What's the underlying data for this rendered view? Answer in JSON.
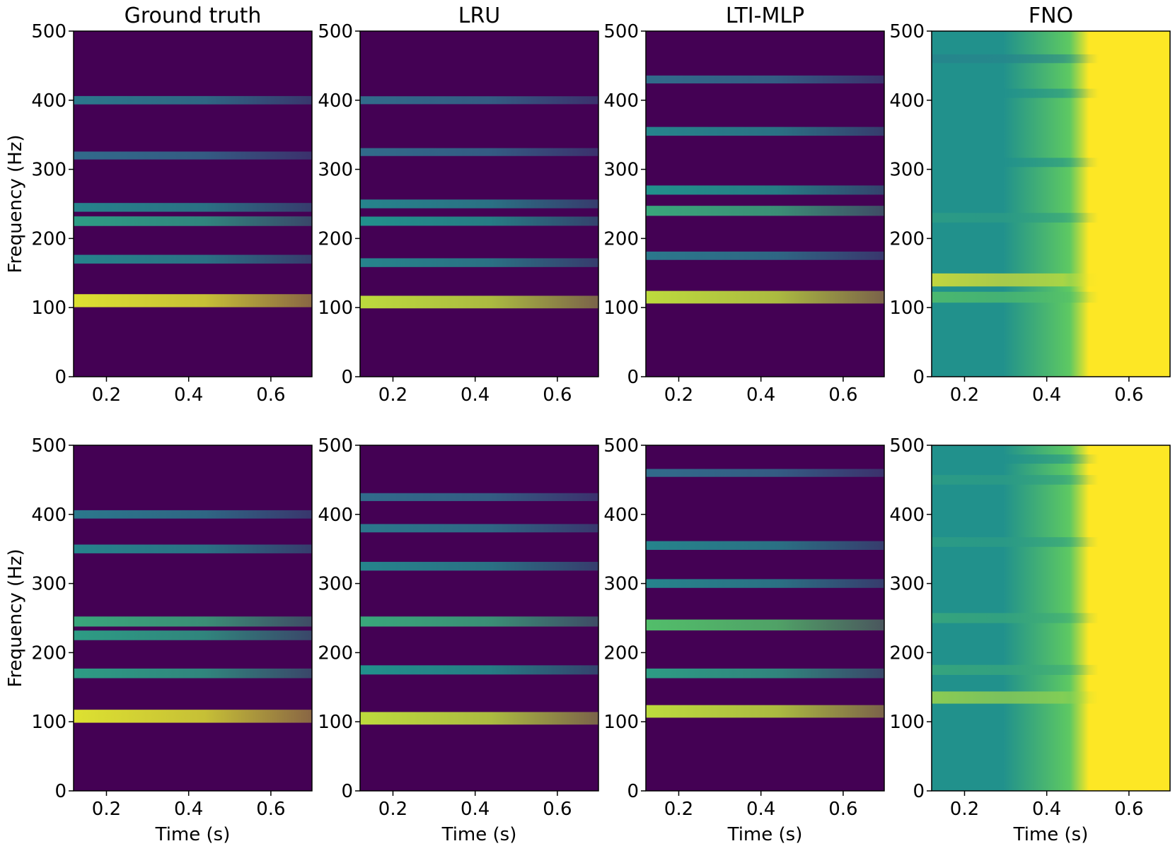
{
  "figure": {
    "colors": {
      "low": "#440154",
      "mid": "#21918c",
      "bright": "#5ec962",
      "high": "#fde725"
    }
  },
  "chart_data": [
    {
      "type": "heatmap",
      "title": "Ground truth",
      "xlabel": "",
      "ylabel": "Frequency (Hz)",
      "xlim": [
        0.12,
        0.7
      ],
      "ylim": [
        0,
        500
      ],
      "xticks": [
        "0.2",
        "0.4",
        "0.6"
      ],
      "yticks": [
        "0",
        "100",
        "200",
        "300",
        "400",
        "500"
      ],
      "colormap": "viridis",
      "bands": [
        {
          "freq": 110,
          "intensity": 0.95
        },
        {
          "freq": 170,
          "intensity": 0.45
        },
        {
          "freq": 225,
          "intensity": 0.55
        },
        {
          "freq": 245,
          "intensity": 0.45
        },
        {
          "freq": 320,
          "intensity": 0.35
        },
        {
          "freq": 400,
          "intensity": 0.4
        }
      ]
    },
    {
      "type": "heatmap",
      "title": "LRU",
      "xlabel": "",
      "ylabel": "",
      "xlim": [
        0.12,
        0.7
      ],
      "ylim": [
        0,
        500
      ],
      "xticks": [
        "0.2",
        "0.4",
        "0.6"
      ],
      "yticks": [
        "0",
        "100",
        "200",
        "300",
        "400",
        "500"
      ],
      "colormap": "viridis",
      "bands": [
        {
          "freq": 108,
          "intensity": 0.9
        },
        {
          "freq": 165,
          "intensity": 0.45
        },
        {
          "freq": 225,
          "intensity": 0.5
        },
        {
          "freq": 250,
          "intensity": 0.45
        },
        {
          "freq": 325,
          "intensity": 0.35
        },
        {
          "freq": 400,
          "intensity": 0.35
        }
      ]
    },
    {
      "type": "heatmap",
      "title": "LTI-MLP",
      "xlabel": "",
      "ylabel": "",
      "xlim": [
        0.12,
        0.7
      ],
      "ylim": [
        0,
        500
      ],
      "xticks": [
        "0.2",
        "0.4",
        "0.6"
      ],
      "yticks": [
        "0",
        "100",
        "200",
        "300",
        "400",
        "500"
      ],
      "colormap": "viridis",
      "bands": [
        {
          "freq": 115,
          "intensity": 0.9
        },
        {
          "freq": 175,
          "intensity": 0.4
        },
        {
          "freq": 240,
          "intensity": 0.6
        },
        {
          "freq": 270,
          "intensity": 0.5
        },
        {
          "freq": 355,
          "intensity": 0.45
        },
        {
          "freq": 430,
          "intensity": 0.35
        }
      ]
    },
    {
      "type": "heatmap",
      "title": "FNO",
      "xlabel": "",
      "ylabel": "",
      "xlim": [
        0.12,
        0.7
      ],
      "ylim": [
        0,
        500
      ],
      "xticks": [
        "0.2",
        "0.4",
        "0.6"
      ],
      "yticks": [
        "0",
        "100",
        "200",
        "300",
        "400",
        "500"
      ],
      "colormap": "viridis",
      "bands": [
        {
          "freq": 140,
          "intensity": 0.95
        },
        {
          "freq": 115,
          "intensity": 0.7
        },
        {
          "freq": 230,
          "intensity": 0.55
        },
        {
          "freq": 310,
          "intensity": 0.5
        },
        {
          "freq": 410,
          "intensity": 0.5
        },
        {
          "freq": 460,
          "intensity": 0.45
        }
      ]
    },
    {
      "type": "heatmap",
      "title": "",
      "xlabel": "Time (s)",
      "ylabel": "Frequency (Hz)",
      "xlim": [
        0.12,
        0.7
      ],
      "ylim": [
        0,
        500
      ],
      "xticks": [
        "0.2",
        "0.4",
        "0.6"
      ],
      "yticks": [
        "0",
        "100",
        "200",
        "300",
        "400",
        "500"
      ],
      "colormap": "viridis",
      "bands": [
        {
          "freq": 108,
          "intensity": 0.95
        },
        {
          "freq": 170,
          "intensity": 0.55
        },
        {
          "freq": 225,
          "intensity": 0.55
        },
        {
          "freq": 245,
          "intensity": 0.6
        },
        {
          "freq": 350,
          "intensity": 0.45
        },
        {
          "freq": 400,
          "intensity": 0.4
        }
      ]
    },
    {
      "type": "heatmap",
      "title": "",
      "xlabel": "Time (s)",
      "ylabel": "",
      "xlim": [
        0.12,
        0.7
      ],
      "ylim": [
        0,
        500
      ],
      "xticks": [
        "0.2",
        "0.4",
        "0.6"
      ],
      "yticks": [
        "0",
        "100",
        "200",
        "300",
        "400",
        "500"
      ],
      "colormap": "viridis",
      "bands": [
        {
          "freq": 105,
          "intensity": 0.9
        },
        {
          "freq": 175,
          "intensity": 0.5
        },
        {
          "freq": 245,
          "intensity": 0.6
        },
        {
          "freq": 325,
          "intensity": 0.45
        },
        {
          "freq": 380,
          "intensity": 0.4
        },
        {
          "freq": 425,
          "intensity": 0.35
        }
      ]
    },
    {
      "type": "heatmap",
      "title": "",
      "xlabel": "Time (s)",
      "ylabel": "",
      "xlim": [
        0.12,
        0.7
      ],
      "ylim": [
        0,
        500
      ],
      "xticks": [
        "0.2",
        "0.4",
        "0.6"
      ],
      "yticks": [
        "0",
        "100",
        "200",
        "300",
        "400",
        "500"
      ],
      "colormap": "viridis",
      "bands": [
        {
          "freq": 115,
          "intensity": 0.9
        },
        {
          "freq": 170,
          "intensity": 0.55
        },
        {
          "freq": 240,
          "intensity": 0.7
        },
        {
          "freq": 300,
          "intensity": 0.45
        },
        {
          "freq": 355,
          "intensity": 0.45
        },
        {
          "freq": 460,
          "intensity": 0.35
        }
      ]
    },
    {
      "type": "heatmap",
      "title": "",
      "xlabel": "Time (s)",
      "ylabel": "",
      "xlim": [
        0.12,
        0.7
      ],
      "ylim": [
        0,
        500
      ],
      "xticks": [
        "0.2",
        "0.4",
        "0.6"
      ],
      "yticks": [
        "0",
        "100",
        "200",
        "300",
        "400",
        "500"
      ],
      "colormap": "viridis",
      "bands": [
        {
          "freq": 135,
          "intensity": 0.85
        },
        {
          "freq": 175,
          "intensity": 0.6
        },
        {
          "freq": 250,
          "intensity": 0.6
        },
        {
          "freq": 360,
          "intensity": 0.55
        },
        {
          "freq": 450,
          "intensity": 0.55
        },
        {
          "freq": 480,
          "intensity": 0.5
        }
      ]
    }
  ]
}
